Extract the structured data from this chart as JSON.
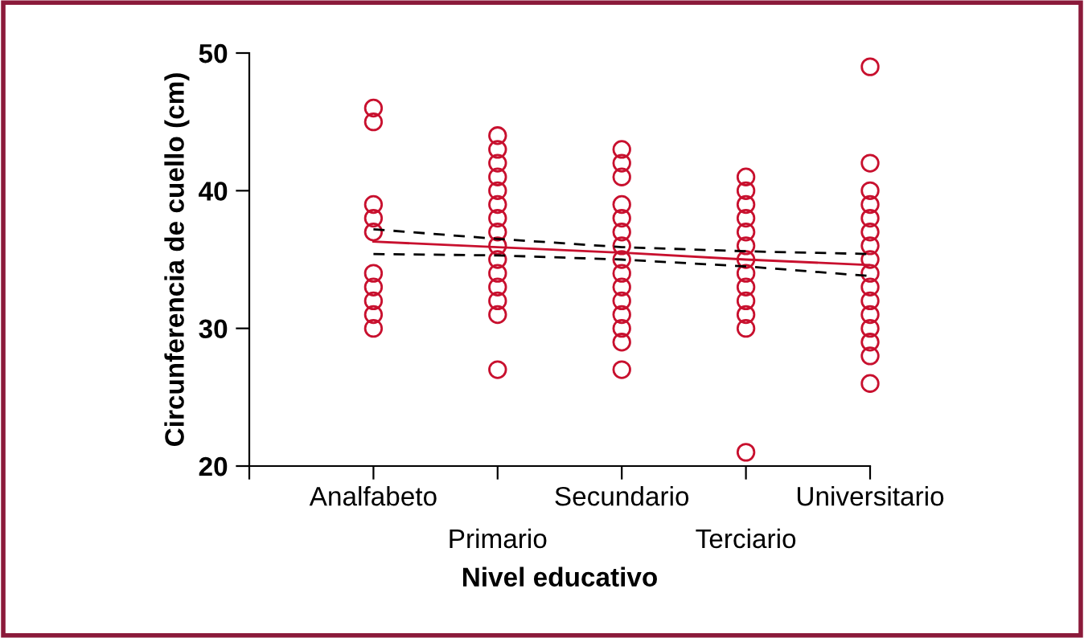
{
  "chart_data": {
    "type": "scatter",
    "xlabel": "Nivel educativo",
    "ylabel": "Circunferencia de cuello (cm)",
    "categories": [
      "Analfabeto",
      "Primario",
      "Secundario",
      "Terciario",
      "Universitario"
    ],
    "ylim": [
      20,
      50
    ],
    "yticks": [
      20,
      30,
      40,
      50
    ],
    "grid": false,
    "legend": false,
    "series": [
      {
        "marker": "circle",
        "color": "#c8102e",
        "x": [
          "Analfabeto",
          "Analfabeto",
          "Analfabeto",
          "Analfabeto",
          "Analfabeto",
          "Analfabeto",
          "Analfabeto",
          "Analfabeto",
          "Analfabeto",
          "Analfabeto"
        ],
        "values": [
          46,
          45,
          39,
          38,
          37,
          34,
          33,
          32,
          31,
          30
        ]
      },
      {
        "marker": "circle",
        "color": "#c8102e",
        "x": [
          "Primario",
          "Primario",
          "Primario",
          "Primario",
          "Primario",
          "Primario",
          "Primario",
          "Primario",
          "Primario",
          "Primario",
          "Primario",
          "Primario",
          "Primario",
          "Primario",
          "Primario"
        ],
        "values": [
          44,
          43,
          42,
          41,
          40,
          39,
          38,
          37,
          36,
          35,
          34,
          33,
          32,
          31,
          27
        ]
      },
      {
        "marker": "circle",
        "color": "#c8102e",
        "x": [
          "Secundario",
          "Secundario",
          "Secundario",
          "Secundario",
          "Secundario",
          "Secundario",
          "Secundario",
          "Secundario",
          "Secundario",
          "Secundario",
          "Secundario",
          "Secundario",
          "Secundario",
          "Secundario",
          "Secundario"
        ],
        "values": [
          43,
          42,
          41,
          39,
          38,
          37,
          36,
          35,
          34,
          33,
          32,
          31,
          30,
          29,
          27
        ]
      },
      {
        "marker": "circle",
        "color": "#c8102e",
        "x": [
          "Terciario",
          "Terciario",
          "Terciario",
          "Terciario",
          "Terciario",
          "Terciario",
          "Terciario",
          "Terciario",
          "Terciario",
          "Terciario",
          "Terciario",
          "Terciario",
          "Terciario"
        ],
        "values": [
          41,
          40,
          39,
          38,
          37,
          36,
          35,
          34,
          33,
          32,
          31,
          30,
          21
        ]
      },
      {
        "marker": "circle",
        "color": "#c8102e",
        "x": [
          "Universitario",
          "Universitario",
          "Universitario",
          "Universitario",
          "Universitario",
          "Universitario",
          "Universitario",
          "Universitario",
          "Universitario",
          "Universitario",
          "Universitario",
          "Universitario",
          "Universitario",
          "Universitario",
          "Universitario",
          "Universitario"
        ],
        "values": [
          49,
          42,
          40,
          39,
          38,
          37,
          36,
          35,
          34,
          33,
          32,
          31,
          30,
          29,
          28,
          26
        ]
      },
      {
        "type": "line",
        "color": "#c8102e",
        "line_style": "solid",
        "values": [
          36.3,
          35.9,
          35.5,
          35.0,
          34.6
        ]
      },
      {
        "type": "line",
        "color": "#000000",
        "line_style": "dashed",
        "values": [
          37.2,
          36.5,
          35.9,
          35.6,
          35.4
        ]
      },
      {
        "type": "line",
        "color": "#000000",
        "line_style": "dashed",
        "values": [
          35.4,
          35.3,
          35.0,
          34.5,
          33.8
        ]
      }
    ]
  }
}
